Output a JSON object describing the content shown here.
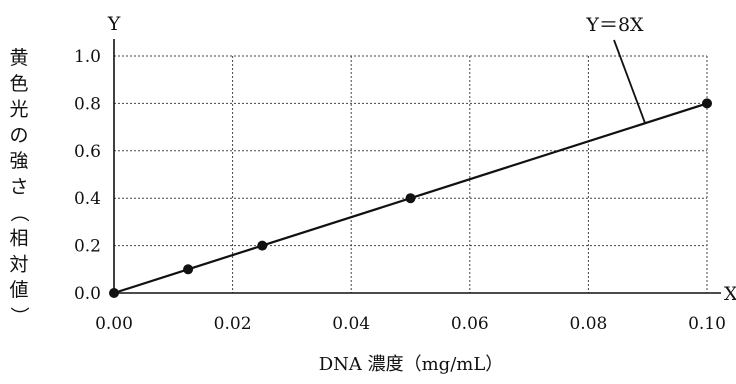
{
  "chart_data": {
    "type": "line",
    "title": "",
    "xlabel": "DNA 濃度（mg/mL）",
    "ylabel": "黄色光の強さ（相対値）",
    "x_axis_letter": "X",
    "y_axis_letter": "Y",
    "xlim": [
      0.0,
      0.1
    ],
    "ylim": [
      0.0,
      1.0
    ],
    "x_ticks": [
      "0.00",
      "0.02",
      "0.04",
      "0.06",
      "0.08",
      "0.10"
    ],
    "y_ticks": [
      "0.0",
      "0.2",
      "0.4",
      "0.6",
      "0.8",
      "1.0"
    ],
    "grid": true,
    "series": [
      {
        "x": [
          0.0,
          0.0125,
          0.025,
          0.05,
          0.1
        ],
        "y": [
          0.0,
          0.1,
          0.2,
          0.4,
          0.8
        ]
      }
    ],
    "annotation": "Y＝8X",
    "colors": {
      "line": "#111111",
      "grid": "#444444",
      "axis": "#111111"
    }
  }
}
